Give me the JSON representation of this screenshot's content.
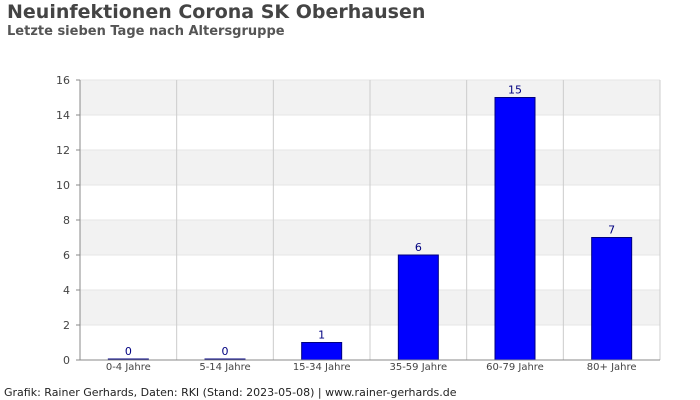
{
  "header": {
    "title": "Neuinfektionen Corona SK Oberhausen",
    "subtitle": "Letzte sieben Tage nach Altersgruppe"
  },
  "footer": {
    "text": "Grafik: Rainer Gerhards, Daten: RKI (Stand: 2023-05-08) | www.rainer-gerhards.de"
  },
  "colors": {
    "bar": "#0000ff",
    "bar_border": "#000080",
    "band": "#f2f2f2",
    "grid": "#cccccc"
  },
  "chart_data": {
    "type": "bar",
    "title": "Neuinfektionen Corona SK Oberhausen",
    "subtitle": "Letzte sieben Tage nach Altersgruppe",
    "categories": [
      "0-4 Jahre",
      "5-14 Jahre",
      "15-34 Jahre",
      "35-59 Jahre",
      "60-79 Jahre",
      "80+ Jahre"
    ],
    "values": [
      0,
      0,
      1,
      6,
      15,
      7
    ],
    "data_labels": [
      "0",
      "0",
      "1",
      "6",
      "15",
      "7"
    ],
    "ylim": [
      0,
      16
    ],
    "yticks": [
      0,
      2,
      4,
      6,
      8,
      10,
      12,
      14,
      16
    ],
    "grid": true,
    "xlabel": "",
    "ylabel": ""
  }
}
